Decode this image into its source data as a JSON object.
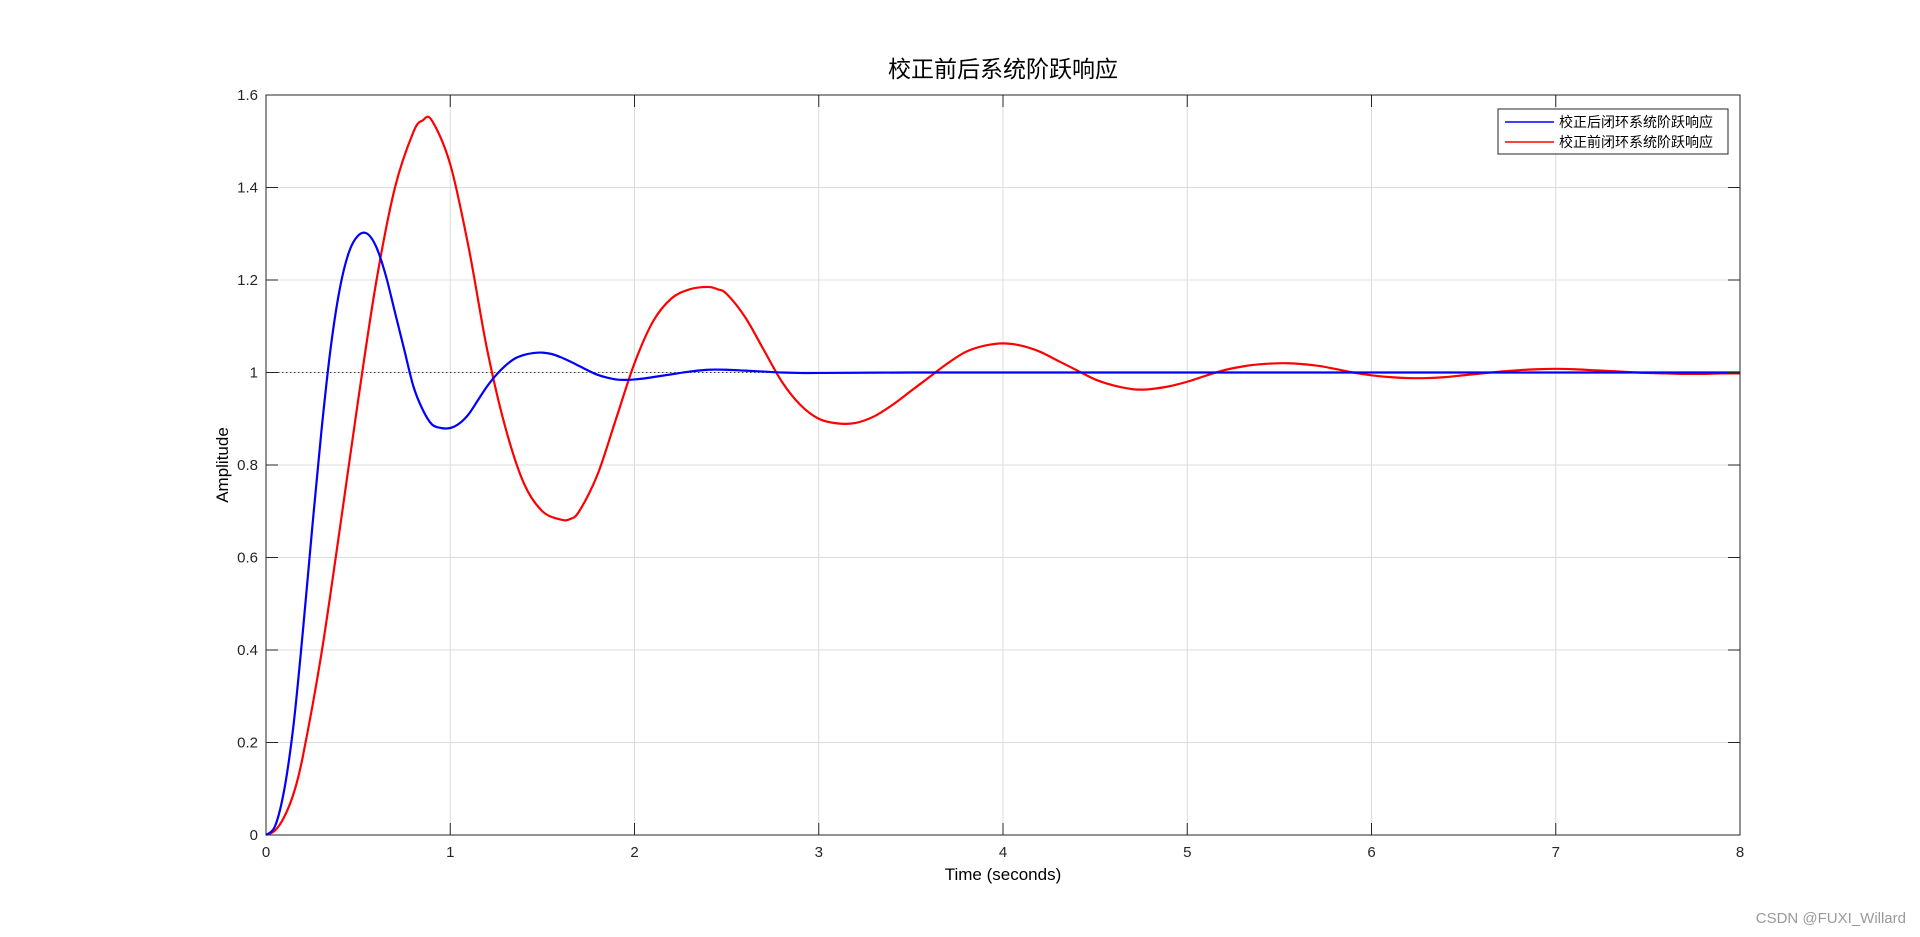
{
  "chart_data": {
    "type": "line",
    "title": "校正前后系统阶跃响应",
    "xlabel": "Time (seconds)",
    "ylabel": "Amplitude",
    "xlim": [
      0,
      8
    ],
    "ylim": [
      0,
      1.6
    ],
    "xticks": [
      0,
      1,
      2,
      3,
      4,
      5,
      6,
      7,
      8
    ],
    "yticks": [
      0,
      0.2,
      0.4,
      0.6,
      0.8,
      1,
      1.2,
      1.4,
      1.6
    ],
    "xtick_labels": [
      "0",
      "1",
      "2",
      "3",
      "4",
      "5",
      "6",
      "7",
      "8"
    ],
    "ytick_labels": [
      "0",
      "0.2",
      "0.4",
      "0.6",
      "0.8",
      "1",
      "1.2",
      "1.4",
      "1.6"
    ],
    "grid": true,
    "legend_position": "top-right",
    "reference_line": {
      "y": 1,
      "style": "dotted"
    },
    "series": [
      {
        "name": "校正后闭环系统阶跃响应",
        "color": "#0000ff",
        "x": [
          0,
          0.05,
          0.1,
          0.15,
          0.2,
          0.25,
          0.3,
          0.35,
          0.4,
          0.45,
          0.5,
          0.55,
          0.6,
          0.65,
          0.7,
          0.75,
          0.8,
          0.85,
          0.9,
          0.95,
          1.0,
          1.05,
          1.1,
          1.15,
          1.2,
          1.25,
          1.3,
          1.35,
          1.4,
          1.45,
          1.5,
          1.55,
          1.6,
          1.65,
          1.7,
          1.75,
          1.8,
          1.85,
          1.9,
          1.95,
          2.0,
          2.05,
          2.1,
          2.15,
          2.2,
          2.3,
          2.4,
          2.5,
          2.6,
          2.7,
          2.8,
          2.9,
          3.0,
          3.5,
          4.0,
          5.0,
          6.0,
          7.0,
          8.0
        ],
        "y": [
          0,
          0.02,
          0.1,
          0.24,
          0.44,
          0.66,
          0.87,
          1.05,
          1.18,
          1.26,
          1.296,
          1.3,
          1.27,
          1.21,
          1.13,
          1.05,
          0.97,
          0.92,
          0.888,
          0.88,
          0.88,
          0.89,
          0.91,
          0.94,
          0.97,
          0.995,
          1.015,
          1.03,
          1.038,
          1.042,
          1.043,
          1.04,
          1.033,
          1.024,
          1.014,
          1.004,
          0.995,
          0.989,
          0.985,
          0.984,
          0.985,
          0.987,
          0.99,
          0.993,
          0.996,
          1.002,
          1.006,
          1.006,
          1.004,
          1.002,
          1.0,
          0.999,
          0.999,
          1.0,
          1.0,
          1.0,
          1.0,
          1.0,
          1.0
        ]
      },
      {
        "name": "校正前闭环系统阶跃响应",
        "color": "#ff0000",
        "x": [
          0,
          0.05,
          0.1,
          0.15,
          0.2,
          0.3,
          0.4,
          0.5,
          0.6,
          0.7,
          0.8,
          0.85,
          0.9,
          1.0,
          1.1,
          1.2,
          1.3,
          1.4,
          1.5,
          1.6,
          1.65,
          1.7,
          1.8,
          1.9,
          2.0,
          2.1,
          2.2,
          2.3,
          2.4,
          2.45,
          2.5,
          2.6,
          2.7,
          2.8,
          2.9,
          3.0,
          3.1,
          3.2,
          3.3,
          3.4,
          3.5,
          3.6,
          3.7,
          3.8,
          3.9,
          4.0,
          4.1,
          4.2,
          4.3,
          4.4,
          4.5,
          4.6,
          4.7,
          4.75,
          4.8,
          4.9,
          5.0,
          5.1,
          5.2,
          5.3,
          5.4,
          5.55,
          5.7,
          5.8,
          5.9,
          6.0,
          6.1,
          6.2,
          6.3,
          6.4,
          6.5,
          6.6,
          6.7,
          6.8,
          6.9,
          7.0,
          7.1,
          7.2,
          7.3,
          7.4,
          7.5,
          7.6,
          7.7,
          7.8,
          7.9,
          8.0
        ],
        "y": [
          0,
          0.01,
          0.04,
          0.09,
          0.17,
          0.39,
          0.66,
          0.94,
          1.2,
          1.4,
          1.52,
          1.545,
          1.545,
          1.45,
          1.27,
          1.05,
          0.88,
          0.76,
          0.7,
          0.682,
          0.683,
          0.7,
          0.78,
          0.9,
          1.02,
          1.11,
          1.16,
          1.18,
          1.185,
          1.18,
          1.17,
          1.12,
          1.05,
          0.98,
          0.93,
          0.9,
          0.89,
          0.891,
          0.905,
          0.93,
          0.96,
          0.99,
          1.02,
          1.045,
          1.058,
          1.063,
          1.058,
          1.045,
          1.025,
          1.005,
          0.985,
          0.972,
          0.964,
          0.963,
          0.964,
          0.97,
          0.98,
          0.993,
          1.005,
          1.013,
          1.018,
          1.02,
          1.015,
          1.008,
          1.0,
          0.994,
          0.99,
          0.988,
          0.988,
          0.99,
          0.994,
          0.998,
          1.002,
          1.005,
          1.007,
          1.008,
          1.007,
          1.005,
          1.003,
          1.001,
          0.999,
          0.998,
          0.997,
          0.997,
          0.998,
          0.998
        ]
      }
    ]
  },
  "watermark": "CSDN @FUXI_Willard"
}
